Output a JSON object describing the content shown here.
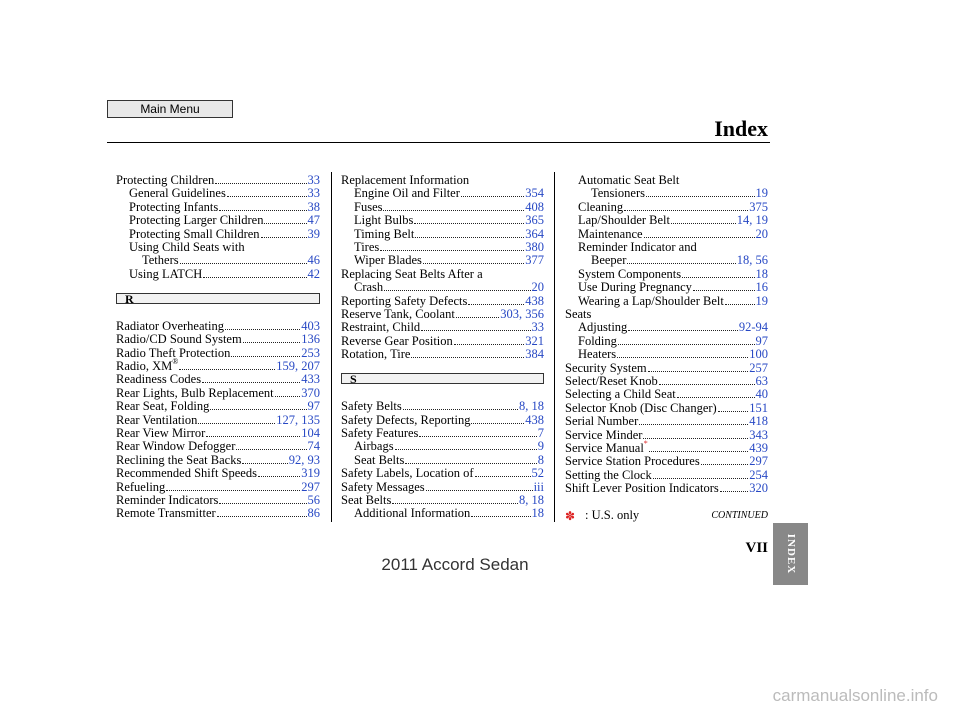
{
  "header": {
    "menu_button": "Main Menu",
    "title": "Index"
  },
  "columns": [
    {
      "items": [
        {
          "text": "Protecting Children",
          "pages": "33",
          "level": 0
        },
        {
          "text": "General Guidelines",
          "pages": "33",
          "level": 1
        },
        {
          "text": "Protecting Infants",
          "pages": "38",
          "level": 1
        },
        {
          "text": "Protecting Larger Children",
          "pages": "47",
          "level": 1
        },
        {
          "text": "Protecting Small Children",
          "pages": "39",
          "level": 1
        },
        {
          "text": "Using Child Seats with",
          "level": 1
        },
        {
          "text": "Tethers",
          "pages": "46",
          "level": 2
        },
        {
          "text": "Using LATCH",
          "pages": "42",
          "level": 1
        },
        {
          "section": "R"
        },
        {
          "text": "Radiator Overheating",
          "pages": "403",
          "level": 0
        },
        {
          "text": "Radio/CD Sound System",
          "pages": "136",
          "level": 0
        },
        {
          "text": "Radio Theft Protection",
          "pages": "253",
          "level": 0
        },
        {
          "text": "Radio, XM",
          "sup": "®",
          "pages": "159, 207",
          "level": 0
        },
        {
          "text": "Readiness Codes",
          "pages": "433",
          "level": 0
        },
        {
          "text": "Rear Lights, Bulb Replacement",
          "pages": "370",
          "level": 0
        },
        {
          "text": "Rear Seat, Folding",
          "pages": "97",
          "level": 0
        },
        {
          "text": "Rear Ventilation",
          "pages": "127, 135",
          "level": 0
        },
        {
          "text": "Rear View Mirror",
          "pages": "104",
          "level": 0
        },
        {
          "text": "Rear Window Defogger",
          "pages": "74",
          "level": 0
        },
        {
          "text": "Reclining the Seat Backs",
          "pages": "92, 93",
          "level": 0
        },
        {
          "text": "Recommended Shift Speeds",
          "pages": "319",
          "level": 0
        },
        {
          "text": "Refueling",
          "pages": "297",
          "level": 0
        },
        {
          "text": "Reminder Indicators",
          "pages": "56",
          "level": 0
        },
        {
          "text": "Remote Transmitter",
          "pages": "86",
          "level": 0
        }
      ]
    },
    {
      "items": [
        {
          "text": "Replacement Information",
          "level": 0
        },
        {
          "text": "Engine Oil and Filter",
          "pages": "354",
          "level": 1
        },
        {
          "text": "Fuses",
          "pages": "408",
          "level": 1
        },
        {
          "text": "Light Bulbs",
          "pages": "365",
          "level": 1
        },
        {
          "text": "Timing Belt",
          "pages": "364",
          "level": 1
        },
        {
          "text": "Tires",
          "pages": "380",
          "level": 1
        },
        {
          "text": "Wiper Blades",
          "pages": "377",
          "level": 1
        },
        {
          "text": "Replacing Seat Belts After a",
          "level": 0
        },
        {
          "text": "Crash",
          "pages": "20",
          "level": 1
        },
        {
          "text": "Reporting Safety Defects",
          "pages": "438",
          "level": 0
        },
        {
          "text": "Reserve Tank, Coolant",
          "pages": "303, 356",
          "level": 0
        },
        {
          "text": "Restraint, Child",
          "pages": "33",
          "level": 0
        },
        {
          "text": "Reverse Gear Position",
          "pages": "321",
          "level": 0
        },
        {
          "text": "Rotation, Tire",
          "pages": "384",
          "level": 0
        },
        {
          "section": "S"
        },
        {
          "text": "Safety Belts",
          "pages": "8, 18",
          "level": 0
        },
        {
          "text": "Safety Defects, Reporting",
          "pages": "438",
          "level": 0
        },
        {
          "text": "Safety Features",
          "pages": "7",
          "level": 0
        },
        {
          "text": "Airbags",
          "pages": "9",
          "level": 1
        },
        {
          "text": "Seat Belts",
          "pages": "8",
          "level": 1
        },
        {
          "text": "Safety Labels, Location of",
          "pages": "52",
          "level": 0
        },
        {
          "text": "Safety Messages",
          "pages": "iii",
          "level": 0
        },
        {
          "text": "Seat Belts",
          "pages": "8, 18",
          "level": 0
        },
        {
          "text": "Additional Information",
          "pages": "18",
          "level": 1
        }
      ]
    },
    {
      "items": [
        {
          "text": "Automatic Seat Belt",
          "level": 1
        },
        {
          "text": "Tensioners",
          "pages": "19",
          "level": 2
        },
        {
          "text": "Cleaning",
          "pages": "375",
          "level": 1
        },
        {
          "text": "Lap/Shoulder Belt",
          "pages": "14, 19",
          "level": 1
        },
        {
          "text": "Maintenance",
          "pages": "20",
          "level": 1
        },
        {
          "text": "Reminder Indicator and",
          "level": 1
        },
        {
          "text": "Beeper",
          "pages": "18, 56",
          "level": 2
        },
        {
          "text": "System Components",
          "pages": "18",
          "level": 1
        },
        {
          "text": "Use During Pregnancy",
          "pages": "16",
          "level": 1
        },
        {
          "text": "Wearing a Lap/Shoulder Belt",
          "pages": "19",
          "level": 1
        },
        {
          "text": "Seats",
          "level": 0
        },
        {
          "text": "Adjusting",
          "pages": "92-94",
          "level": 1
        },
        {
          "text": "Folding",
          "pages": "97",
          "level": 1
        },
        {
          "text": "Heaters",
          "pages": "100",
          "level": 1
        },
        {
          "text": "Security System",
          "pages": "257",
          "level": 0
        },
        {
          "text": "Select/Reset Knob",
          "pages": "63",
          "level": 0
        },
        {
          "text": "Selecting a Child Seat",
          "pages": "40",
          "level": 0
        },
        {
          "text": "Selector Knob (Disc Changer)",
          "pages": "151",
          "level": 0
        },
        {
          "text": "Serial Number",
          "pages": "418",
          "level": 0
        },
        {
          "text": "Service Minder",
          "pages": "343",
          "level": 0
        },
        {
          "text": "Service Manual",
          "sup": "*",
          "pages": "439",
          "level": 0
        },
        {
          "text": "Service Station Procedures",
          "pages": "297",
          "level": 0
        },
        {
          "text": "Setting the Clock",
          "pages": "254",
          "level": 0
        },
        {
          "text": "Shift Lever Position Indicators",
          "pages": "320",
          "level": 0
        }
      ]
    }
  ],
  "footnote": {
    "mark": "✽",
    "text": ": U.S. only"
  },
  "continued": "CONTINUED",
  "page_number": "VII",
  "tab": "INDEX",
  "footer": "2011 Accord Sedan",
  "watermark": "carmanualsonline.info"
}
